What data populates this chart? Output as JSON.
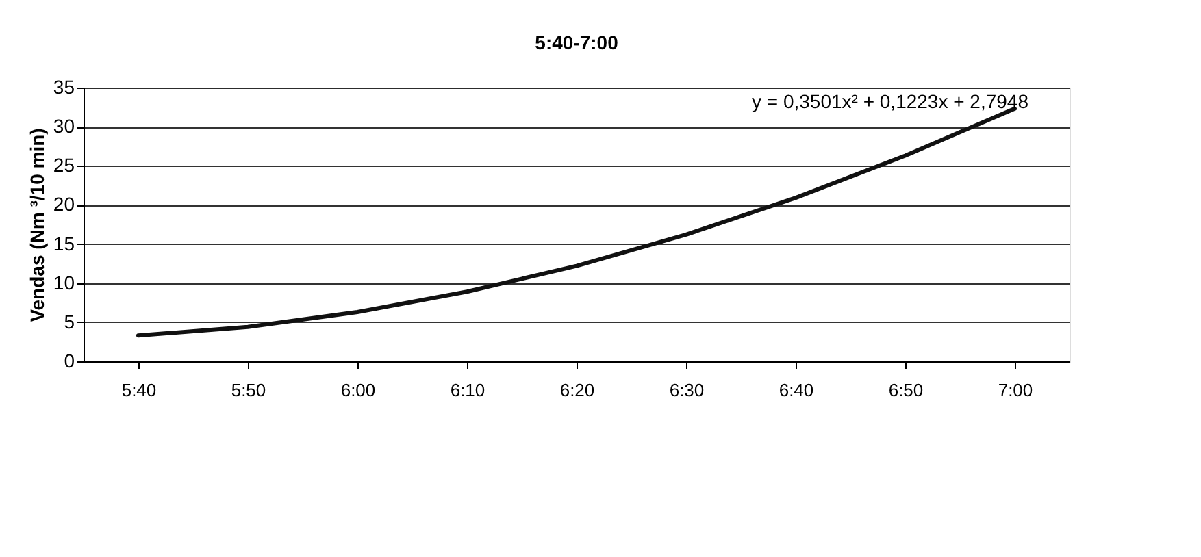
{
  "chart_data": {
    "type": "line",
    "title": "5:40-7:00",
    "ylabel": "Vendas (Nm ³/10 min)",
    "categories": [
      "5:40",
      "5:50",
      "6:00",
      "6:10",
      "6:20",
      "6:30",
      "6:40",
      "6:50",
      "7:00"
    ],
    "series": [
      {
        "color": "#111111",
        "values": [
          3.3,
          4.4,
          6.3,
          8.9,
          12.2,
          16.2,
          20.9,
          26.3,
          32.3
        ]
      }
    ],
    "ylim": [
      0,
      35
    ],
    "yticks": [
      0,
      5,
      10,
      15,
      20,
      25,
      30,
      35
    ],
    "grid": "y",
    "legend": false,
    "marker": "none",
    "line_style": "solid",
    "annotations": [
      "y = 0,3501x² + 0,1223x + 2,7948"
    ]
  }
}
